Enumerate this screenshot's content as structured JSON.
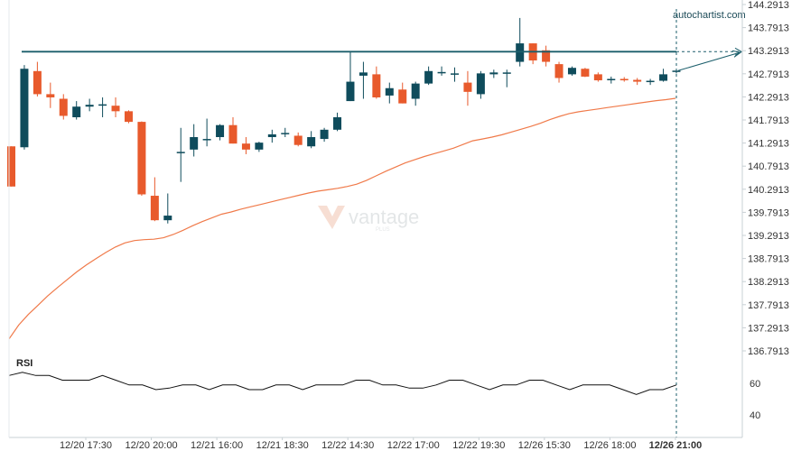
{
  "chart_data": {
    "type": "candlestick",
    "brand": "autochartist.com",
    "watermark": {
      "name": "vantage",
      "sub": "PLUS"
    },
    "price_ticks": [
      "144.2913",
      "143.7913",
      "143.2913",
      "142.7913",
      "142.2913",
      "141.7913",
      "141.2913",
      "140.7913",
      "140.2913",
      "139.7913",
      "139.2913",
      "138.7913",
      "138.2913",
      "137.7913",
      "137.2913",
      "136.7913"
    ],
    "x_ticks": [
      "12/20 17:30",
      "12/20 20:00",
      "12/21 16:00",
      "12/21 18:30",
      "12/22 14:30",
      "12/22 17:00",
      "12/22 19:30",
      "12/26 15:30",
      "12/26 18:00",
      "12/26 21:00"
    ],
    "y_range": [
      136.7913,
      144.2913
    ],
    "candles": [
      {
        "o": 141.22,
        "h": 141.22,
        "l": 140.35,
        "c": 140.35
      },
      {
        "o": 141.2,
        "h": 142.98,
        "l": 141.15,
        "c": 142.9
      },
      {
        "o": 142.85,
        "h": 143.05,
        "l": 142.3,
        "c": 142.35
      },
      {
        "o": 142.35,
        "h": 142.6,
        "l": 142.05,
        "c": 142.28
      },
      {
        "o": 142.25,
        "h": 142.35,
        "l": 141.8,
        "c": 141.88
      },
      {
        "o": 141.85,
        "h": 142.2,
        "l": 141.8,
        "c": 142.08
      },
      {
        "o": 142.08,
        "h": 142.25,
        "l": 141.98,
        "c": 142.12
      },
      {
        "o": 142.13,
        "h": 142.28,
        "l": 141.85,
        "c": 142.13
      },
      {
        "o": 142.1,
        "h": 142.28,
        "l": 141.85,
        "c": 141.98
      },
      {
        "o": 141.98,
        "h": 142.0,
        "l": 141.72,
        "c": 141.75
      },
      {
        "o": 141.75,
        "h": 141.76,
        "l": 140.15,
        "c": 140.18
      },
      {
        "o": 140.15,
        "h": 140.55,
        "l": 139.6,
        "c": 139.62
      },
      {
        "o": 139.62,
        "h": 140.2,
        "l": 139.55,
        "c": 139.72
      },
      {
        "o": 141.1,
        "h": 141.62,
        "l": 140.45,
        "c": 141.1
      },
      {
        "o": 141.15,
        "h": 141.7,
        "l": 141.0,
        "c": 141.42
      },
      {
        "o": 141.38,
        "h": 141.82,
        "l": 141.22,
        "c": 141.38
      },
      {
        "o": 141.42,
        "h": 141.7,
        "l": 141.35,
        "c": 141.68
      },
      {
        "o": 141.68,
        "h": 141.85,
        "l": 141.28,
        "c": 141.28
      },
      {
        "o": 141.28,
        "h": 141.42,
        "l": 141.05,
        "c": 141.15
      },
      {
        "o": 141.15,
        "h": 141.32,
        "l": 141.1,
        "c": 141.3
      },
      {
        "o": 141.42,
        "h": 141.58,
        "l": 141.3,
        "c": 141.48
      },
      {
        "o": 141.5,
        "h": 141.62,
        "l": 141.42,
        "c": 141.51
      },
      {
        "o": 141.45,
        "h": 141.52,
        "l": 141.22,
        "c": 141.25
      },
      {
        "o": 141.22,
        "h": 141.55,
        "l": 141.18,
        "c": 141.42
      },
      {
        "o": 141.38,
        "h": 141.62,
        "l": 141.32,
        "c": 141.58
      },
      {
        "o": 141.58,
        "h": 141.95,
        "l": 141.55,
        "c": 141.85
      },
      {
        "o": 142.2,
        "h": 143.27,
        "l": 142.2,
        "c": 142.62
      },
      {
        "o": 142.75,
        "h": 143.05,
        "l": 142.25,
        "c": 142.82
      },
      {
        "o": 142.78,
        "h": 142.95,
        "l": 142.25,
        "c": 142.28
      },
      {
        "o": 142.32,
        "h": 142.6,
        "l": 142.15,
        "c": 142.48
      },
      {
        "o": 142.45,
        "h": 142.6,
        "l": 142.15,
        "c": 142.15
      },
      {
        "o": 142.25,
        "h": 142.62,
        "l": 142.1,
        "c": 142.58
      },
      {
        "o": 142.58,
        "h": 142.95,
        "l": 142.55,
        "c": 142.85
      },
      {
        "o": 142.82,
        "h": 142.95,
        "l": 142.75,
        "c": 142.83
      },
      {
        "o": 142.8,
        "h": 142.93,
        "l": 142.62,
        "c": 142.8
      },
      {
        "o": 142.6,
        "h": 142.85,
        "l": 142.1,
        "c": 142.4
      },
      {
        "o": 142.35,
        "h": 142.85,
        "l": 142.25,
        "c": 142.8
      },
      {
        "o": 142.78,
        "h": 142.88,
        "l": 142.7,
        "c": 142.82
      },
      {
        "o": 142.82,
        "h": 142.88,
        "l": 142.5,
        "c": 142.82
      },
      {
        "o": 143.05,
        "h": 144.0,
        "l": 142.95,
        "c": 143.45
      },
      {
        "o": 143.45,
        "h": 143.45,
        "l": 143.0,
        "c": 143.08
      },
      {
        "o": 143.3,
        "h": 143.4,
        "l": 142.95,
        "c": 143.05
      },
      {
        "o": 143.0,
        "h": 143.05,
        "l": 142.6,
        "c": 142.7
      },
      {
        "o": 142.78,
        "h": 142.95,
        "l": 142.75,
        "c": 142.92
      },
      {
        "o": 142.9,
        "h": 142.92,
        "l": 142.72,
        "c": 142.73
      },
      {
        "o": 142.78,
        "h": 142.82,
        "l": 142.62,
        "c": 142.65
      },
      {
        "o": 142.66,
        "h": 142.73,
        "l": 142.58,
        "c": 142.68
      },
      {
        "o": 142.68,
        "h": 142.72,
        "l": 142.62,
        "c": 142.65
      },
      {
        "o": 142.66,
        "h": 142.7,
        "l": 142.55,
        "c": 142.62
      },
      {
        "o": 142.62,
        "h": 142.68,
        "l": 142.55,
        "c": 142.64
      },
      {
        "o": 142.64,
        "h": 142.9,
        "l": 142.62,
        "c": 142.78
      },
      {
        "o": 142.83,
        "h": 142.9,
        "l": 142.8,
        "c": 142.86
      }
    ],
    "moving_average": [
      137.05,
      137.35,
      137.58,
      137.78,
      137.98,
      138.16,
      138.33,
      138.5,
      138.65,
      138.79,
      138.92,
      139.04,
      139.13,
      139.18,
      139.2,
      139.21,
      139.24,
      139.31,
      139.4,
      139.5,
      139.59,
      139.67,
      139.75,
      139.8,
      139.86,
      139.91,
      139.96,
      140.01,
      140.06,
      140.11,
      140.16,
      140.21,
      140.25,
      140.28,
      140.31,
      140.35,
      140.4,
      140.48,
      140.58,
      140.68,
      140.77,
      140.86,
      140.93,
      141.0,
      141.06,
      141.12,
      141.18,
      141.26,
      141.34,
      141.38,
      141.42,
      141.47,
      141.53,
      141.59,
      141.65,
      141.72,
      141.8,
      141.87,
      141.93,
      141.97,
      142.0,
      142.03,
      142.06,
      142.09,
      142.12,
      142.15,
      142.18,
      142.21,
      142.23,
      142.26
    ],
    "resistance_level": 143.27,
    "rsi": {
      "label": "RSI",
      "ticks": [
        60,
        40
      ],
      "values": [
        65,
        67,
        65,
        65,
        62,
        62,
        62,
        65,
        62,
        59,
        59,
        56,
        57,
        59,
        59,
        56,
        59,
        59,
        56,
        56,
        59,
        59,
        56,
        59,
        59,
        59,
        62,
        62,
        59,
        59,
        57,
        57,
        59,
        62,
        62,
        59,
        56,
        59,
        59,
        62,
        62,
        59,
        56,
        59,
        59,
        59,
        56,
        53,
        56,
        56,
        59
      ]
    },
    "colors": {
      "up": "#0f4c5c",
      "down": "#e85a2c",
      "ma": "#f07a4a",
      "level": "#1b5e6b",
      "rsi": "#111111",
      "axis": "#c8d0d4"
    }
  }
}
